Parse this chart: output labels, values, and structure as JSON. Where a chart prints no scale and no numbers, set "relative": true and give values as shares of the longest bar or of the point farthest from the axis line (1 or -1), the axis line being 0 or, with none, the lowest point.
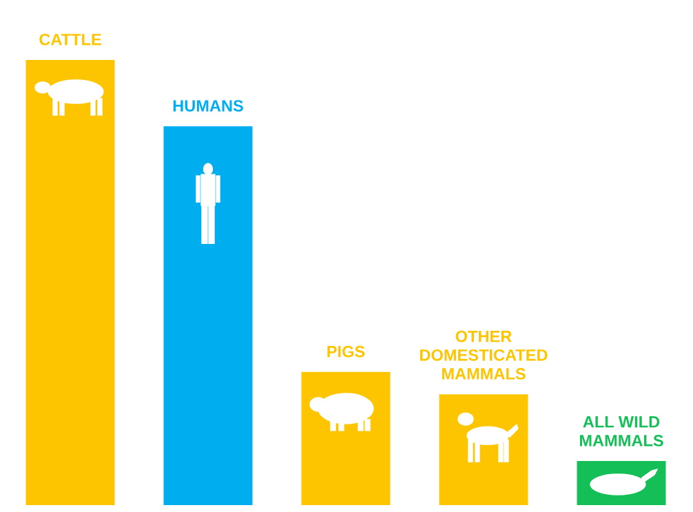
{
  "chart_data": {
    "type": "bar",
    "relative": true,
    "categories": [
      "CATTLE",
      "HUMANS",
      "PIGS",
      "OTHER\nDOMESTICATED\nMAMMALS",
      "ALL WILD\nMAMMALS"
    ],
    "values": [
      1,
      0.851,
      0.299,
      0.249,
      0.099
    ],
    "colors": [
      "#fdc500",
      "#00adef",
      "#fdc500",
      "#fdc500",
      "#14bf57"
    ],
    "data_labels": false
  }
}
